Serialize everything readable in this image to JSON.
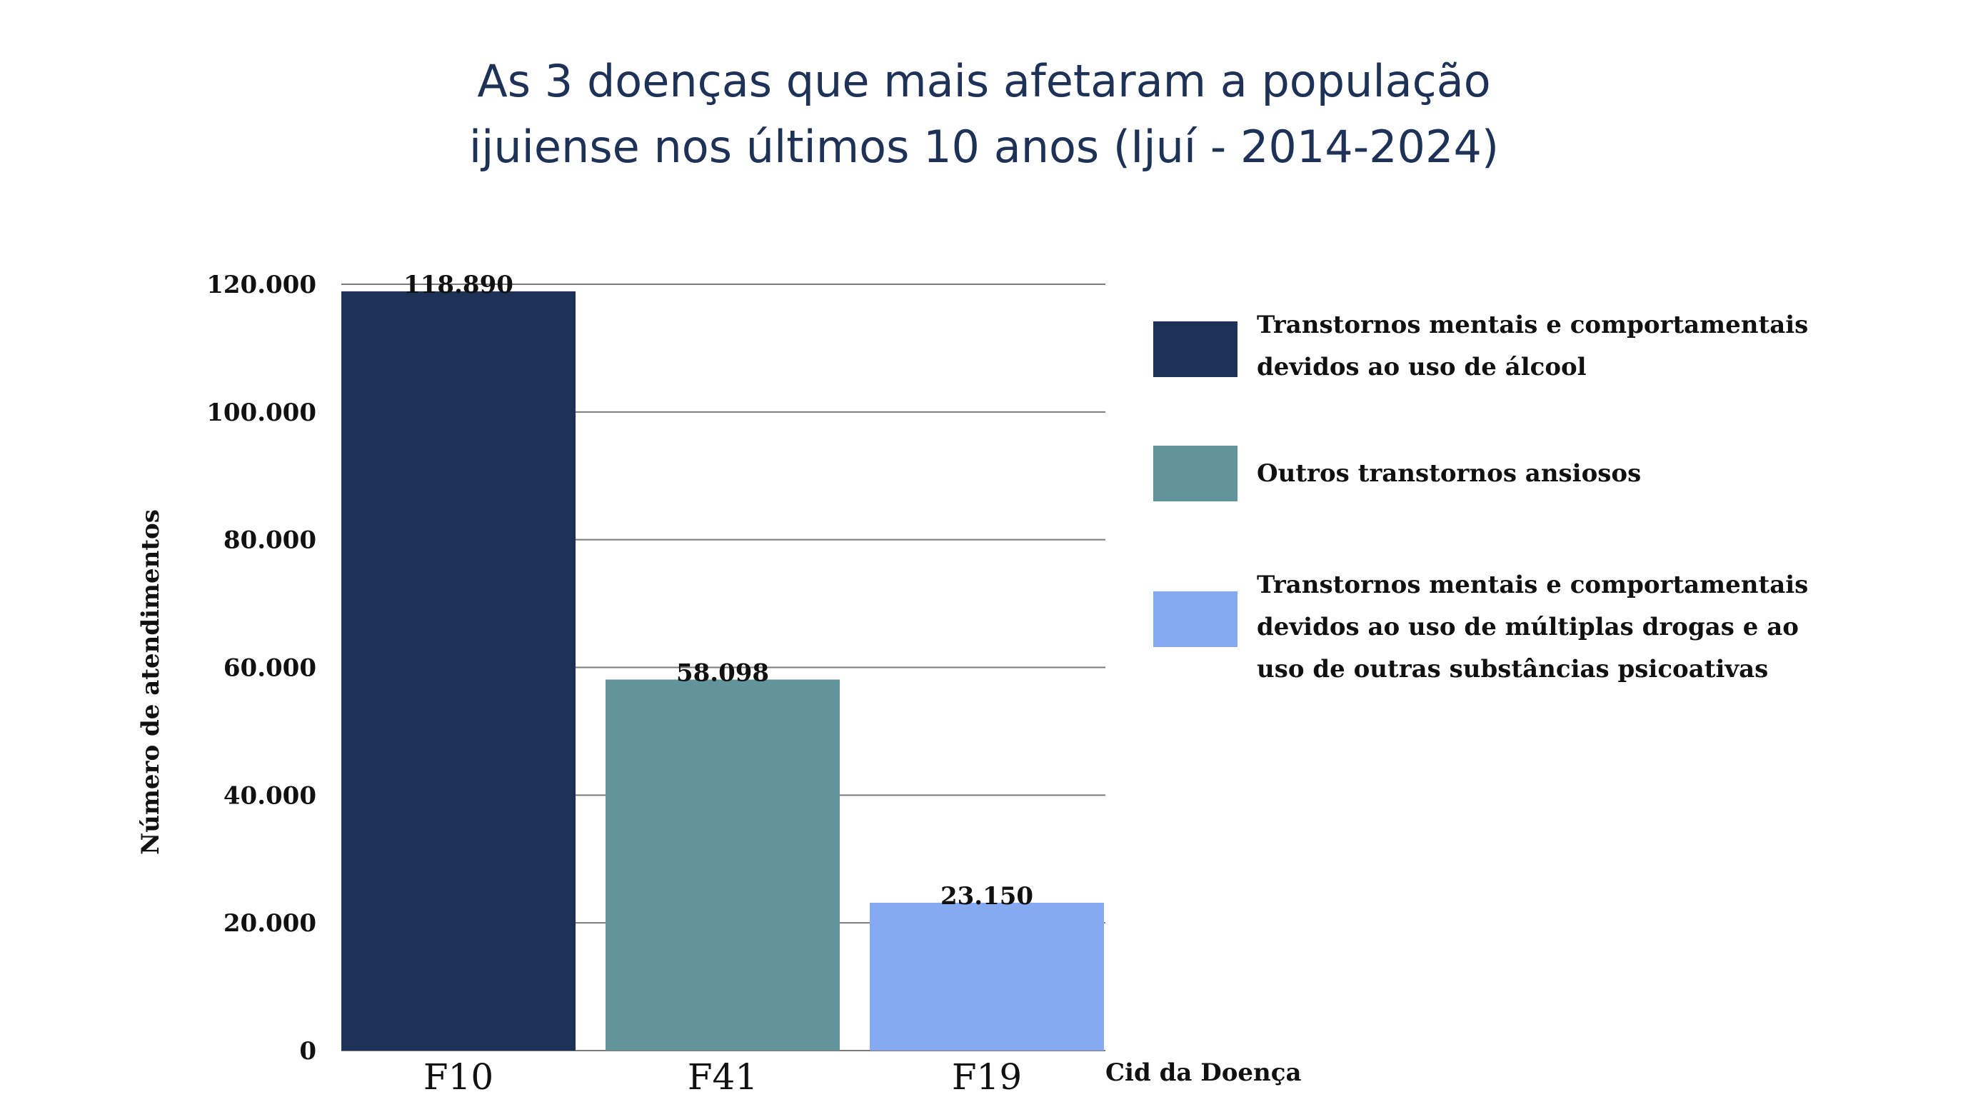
{
  "title_lines": [
    "As 3 doenças que mais afetaram a população",
    "ijuiense nos últimos 10 anos (Ijuí - 2014-2024)"
  ],
  "chart_data": {
    "type": "bar",
    "title": "As 3 doenças que mais afetaram a população ijuiense nos últimos 10 anos (Ijuí - 2014-2024)",
    "categories": [
      "F10",
      "F41",
      "F19"
    ],
    "values": [
      118890,
      58098,
      23150
    ],
    "data_labels": [
      "118.890",
      "58.098",
      "23.150"
    ],
    "colors": [
      "#1e3157",
      "#62949c",
      "#86aaf2"
    ],
    "xlabel": "Cid da Doença",
    "ylabel": "Número de atendimentos",
    "ylim": [
      0,
      120000
    ],
    "yticks": [
      0,
      20000,
      40000,
      60000,
      80000,
      100000,
      120000
    ],
    "ytick_labels": [
      "0",
      "20.000",
      "40.000",
      "60.000",
      "80.000",
      "100.000",
      "120.000"
    ],
    "grid": true,
    "legend_position": "right",
    "legend": [
      {
        "label_lines": [
          "Transtornos mentais e comportamentais",
          "devidos ao uso de álcool"
        ],
        "color": "#1e3157"
      },
      {
        "label_lines": [
          "Outros transtornos ansiosos"
        ],
        "color": "#62949c"
      },
      {
        "label_lines": [
          "Transtornos mentais e comportamentais",
          "devidos ao uso de múltiplas drogas e ao",
          "uso de outras substâncias psicoativas"
        ],
        "color": "#86aaf2"
      }
    ]
  }
}
